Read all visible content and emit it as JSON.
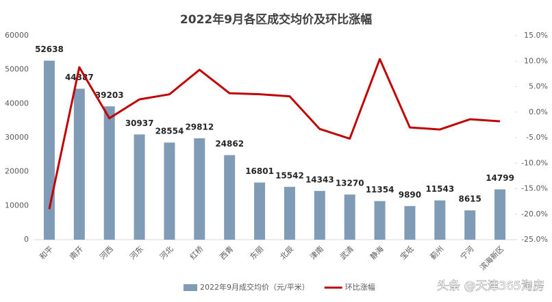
{
  "chart_data": {
    "type": "combo",
    "title": "2022年9月各区成交均价及环比涨幅",
    "categories": [
      "和平",
      "南开",
      "河西",
      "河东",
      "河北",
      "红桥",
      "西青",
      "东丽",
      "北辰",
      "津南",
      "武清",
      "静海",
      "宝坻",
      "蓟州",
      "宁河",
      "滨海新区"
    ],
    "series": [
      {
        "name": "2022年9月成交均价（元/平米）",
        "type": "bar",
        "color": "#7f9bb6",
        "values": [
          52638,
          44387,
          39203,
          30937,
          28554,
          29812,
          24862,
          16801,
          15542,
          14343,
          13270,
          11354,
          9890,
          11543,
          8615,
          14799
        ]
      },
      {
        "name": "环比涨幅",
        "type": "line",
        "axis": "y2",
        "color": "#c00000",
        "values": [
          -19.0,
          8.8,
          -1.2,
          2.5,
          3.5,
          8.3,
          3.7,
          3.5,
          3.1,
          -3.3,
          -5.2,
          10.4,
          -3.0,
          -3.4,
          -1.4,
          -1.8
        ]
      }
    ],
    "ylim": [
      0,
      60000
    ],
    "yticks": [
      0,
      10000,
      20000,
      30000,
      40000,
      50000,
      60000
    ],
    "y2lim": [
      -25,
      15
    ],
    "y2ticks": [
      {
        "value": -25,
        "label": "-25.0%"
      },
      {
        "value": -20,
        "label": "-20.0%"
      },
      {
        "value": -15,
        "label": "-15.0%"
      },
      {
        "value": -10,
        "label": "-10.0%"
      },
      {
        "value": -5,
        "label": "-5.0%"
      },
      {
        "value": 0,
        "label": "0.0%"
      },
      {
        "value": 5,
        "label": "5.0%"
      },
      {
        "value": 10,
        "label": "10.0%"
      },
      {
        "value": 15,
        "label": "15.0%"
      }
    ],
    "grid": false,
    "legend": "bottom",
    "watermark": "头条 @天津365淘房"
  }
}
